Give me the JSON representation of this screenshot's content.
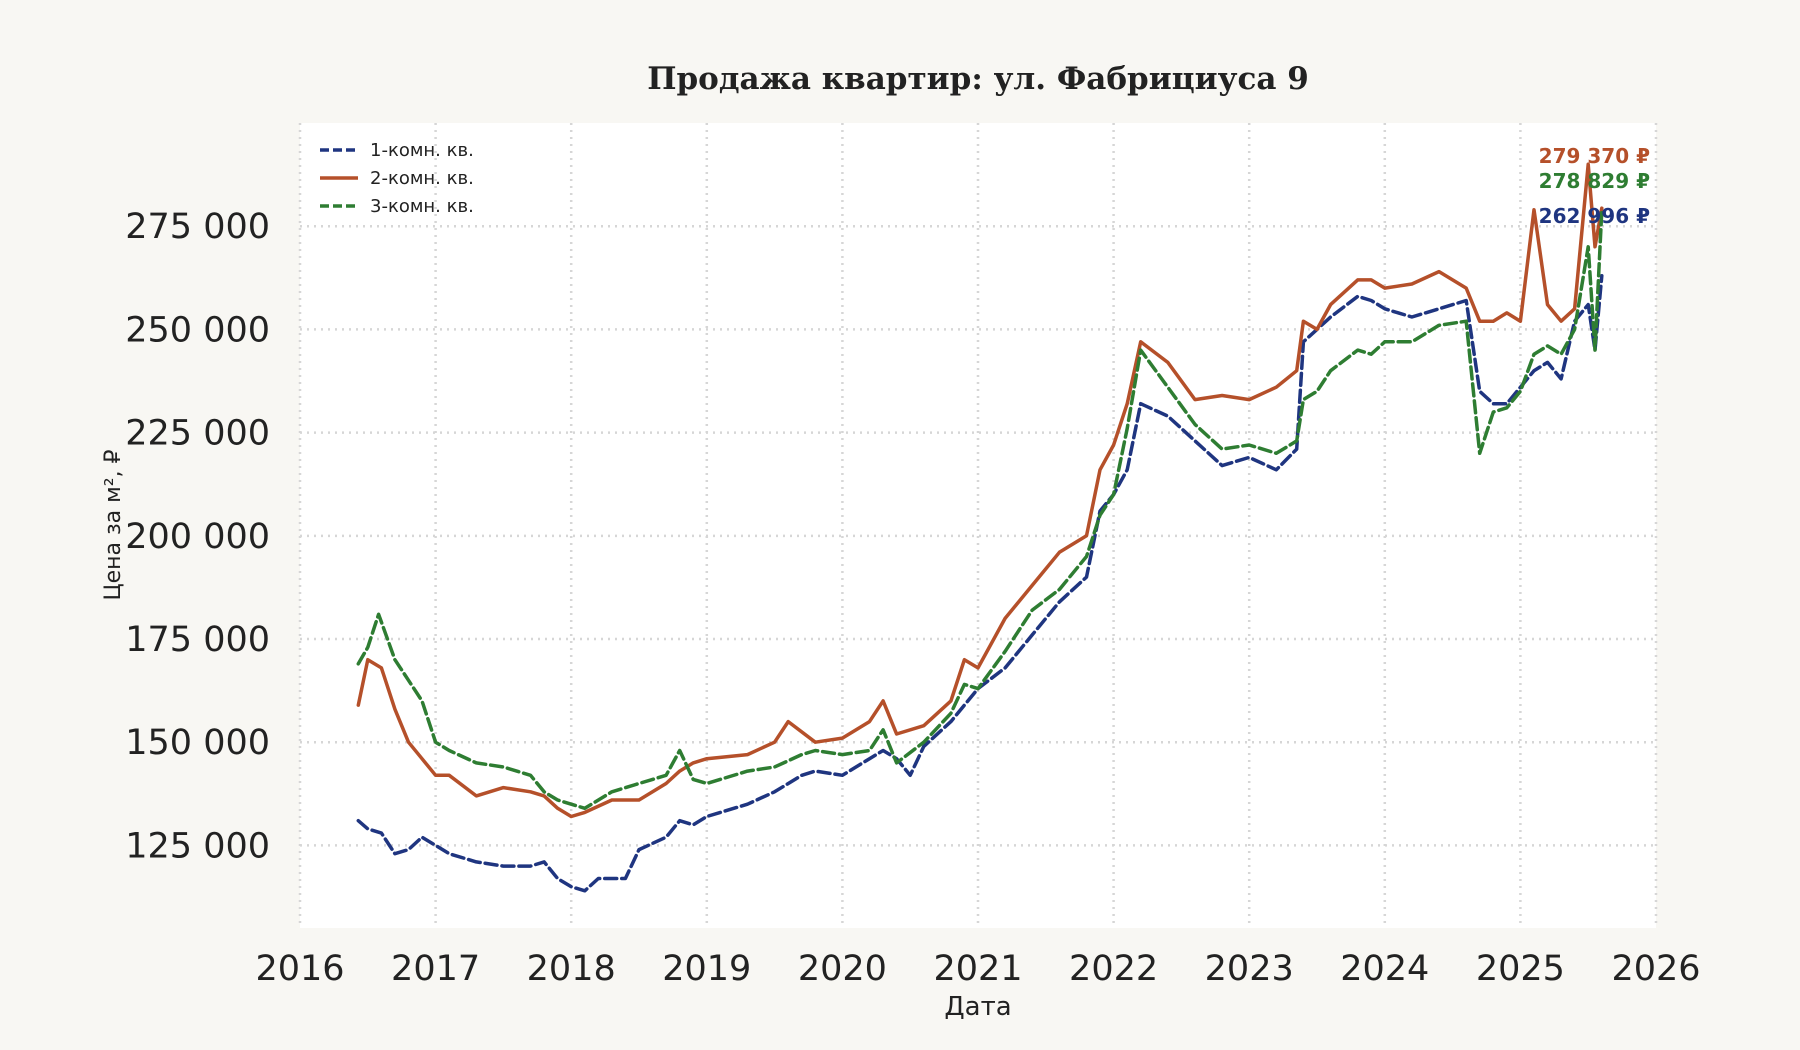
{
  "chart_data": {
    "type": "line",
    "title": "Продажа квартир: ул. Фабрициуса 9",
    "xlabel": "Дата",
    "ylabel": "Цена за м², ₽",
    "xlim": [
      2016.0,
      2026.0
    ],
    "ylim": [
      105000,
      300000
    ],
    "x_ticks": [
      2016,
      2017,
      2018,
      2019,
      2020,
      2021,
      2022,
      2023,
      2024,
      2025,
      2026
    ],
    "x_tick_labels": [
      "2016",
      "2017",
      "2018",
      "2019",
      "2020",
      "2021",
      "2022",
      "2023",
      "2024",
      "2025",
      "2026"
    ],
    "y_ticks": [
      125000,
      150000,
      175000,
      200000,
      225000,
      250000,
      275000
    ],
    "y_tick_labels": [
      "125 000",
      "150 000",
      "175 000",
      "200 000",
      "225 000",
      "250 000",
      "275 000"
    ],
    "grid": true,
    "legend_position": "top-left",
    "series": [
      {
        "name": "1-комн. кв.",
        "color": "#1f3580",
        "dash": "dashed",
        "end_label": "262 996 ₽",
        "x": [
          2016.43,
          2016.5,
          2016.6,
          2016.7,
          2016.8,
          2016.9,
          2017.0,
          2017.1,
          2017.3,
          2017.5,
          2017.7,
          2017.8,
          2017.9,
          2018.0,
          2018.1,
          2018.2,
          2018.4,
          2018.5,
          2018.7,
          2018.8,
          2018.9,
          2019.0,
          2019.3,
          2019.5,
          2019.7,
          2019.8,
          2020.0,
          2020.2,
          2020.3,
          2020.4,
          2020.5,
          2020.6,
          2020.8,
          2020.9,
          2021.0,
          2021.2,
          2021.4,
          2021.6,
          2021.8,
          2021.9,
          2022.0,
          2022.1,
          2022.2,
          2022.4,
          2022.6,
          2022.8,
          2023.0,
          2023.2,
          2023.35,
          2023.4,
          2023.5,
          2023.6,
          2023.8,
          2023.9,
          2024.0,
          2024.2,
          2024.4,
          2024.6,
          2024.7,
          2024.8,
          2024.9,
          2025.0,
          2025.1,
          2025.2,
          2025.3,
          2025.4,
          2025.5,
          2025.55,
          2025.6
        ],
        "y": [
          131000,
          129000,
          128000,
          123000,
          124000,
          127000,
          125000,
          123000,
          121000,
          120000,
          120000,
          121000,
          117000,
          115000,
          114000,
          117000,
          117000,
          124000,
          127000,
          131000,
          130000,
          132000,
          135000,
          138000,
          142000,
          143000,
          142000,
          146000,
          148000,
          146000,
          142000,
          149000,
          155000,
          159000,
          163000,
          168000,
          176000,
          184000,
          190000,
          206000,
          210000,
          216000,
          232000,
          229000,
          223000,
          217000,
          219000,
          216000,
          221000,
          247000,
          250000,
          253000,
          258000,
          257000,
          255000,
          253000,
          255000,
          257000,
          235000,
          232000,
          232000,
          236000,
          240000,
          242000,
          238000,
          252000,
          256000,
          245000,
          262996
        ]
      },
      {
        "name": "2-комн. кв.",
        "color": "#b5502a",
        "dash": "solid",
        "end_label": "279 370 ₽",
        "x": [
          2016.43,
          2016.5,
          2016.6,
          2016.7,
          2016.8,
          2016.9,
          2017.0,
          2017.1,
          2017.3,
          2017.5,
          2017.7,
          2017.8,
          2017.9,
          2018.0,
          2018.1,
          2018.3,
          2018.5,
          2018.7,
          2018.8,
          2018.9,
          2019.0,
          2019.3,
          2019.5,
          2019.6,
          2019.8,
          2020.0,
          2020.2,
          2020.3,
          2020.4,
          2020.6,
          2020.8,
          2020.9,
          2021.0,
          2021.2,
          2021.4,
          2021.6,
          2021.8,
          2021.9,
          2022.0,
          2022.1,
          2022.2,
          2022.4,
          2022.6,
          2022.8,
          2023.0,
          2023.2,
          2023.35,
          2023.4,
          2023.5,
          2023.6,
          2023.8,
          2023.9,
          2024.0,
          2024.2,
          2024.4,
          2024.6,
          2024.7,
          2024.8,
          2024.9,
          2025.0,
          2025.1,
          2025.2,
          2025.3,
          2025.4,
          2025.5,
          2025.55,
          2025.6
        ],
        "y": [
          159000,
          170000,
          168000,
          158000,
          150000,
          146000,
          142000,
          142000,
          137000,
          139000,
          138000,
          137000,
          134000,
          132000,
          133000,
          136000,
          136000,
          140000,
          143000,
          145000,
          146000,
          147000,
          150000,
          155000,
          150000,
          151000,
          155000,
          160000,
          152000,
          154000,
          160000,
          170000,
          168000,
          180000,
          188000,
          196000,
          200000,
          216000,
          222000,
          232000,
          247000,
          242000,
          233000,
          234000,
          233000,
          236000,
          240000,
          252000,
          250000,
          256000,
          262000,
          262000,
          260000,
          261000,
          264000,
          260000,
          252000,
          252000,
          254000,
          252000,
          279000,
          256000,
          252000,
          255000,
          290000,
          270000,
          279370
        ]
      },
      {
        "name": "3-комн. кв.",
        "color": "#2e7d32",
        "dash": "dashed",
        "end_label": "278 829 ₽",
        "x": [
          2016.43,
          2016.5,
          2016.58,
          2016.7,
          2016.8,
          2016.9,
          2017.0,
          2017.1,
          2017.3,
          2017.5,
          2017.7,
          2017.8,
          2017.9,
          2018.0,
          2018.1,
          2018.3,
          2018.5,
          2018.7,
          2018.8,
          2018.9,
          2019.0,
          2019.3,
          2019.5,
          2019.7,
          2019.8,
          2020.0,
          2020.2,
          2020.3,
          2020.4,
          2020.6,
          2020.8,
          2020.9,
          2021.0,
          2021.2,
          2021.4,
          2021.6,
          2021.8,
          2021.9,
          2022.0,
          2022.1,
          2022.2,
          2022.4,
          2022.6,
          2022.8,
          2023.0,
          2023.2,
          2023.35,
          2023.4,
          2023.5,
          2023.6,
          2023.8,
          2023.9,
          2024.0,
          2024.2,
          2024.4,
          2024.6,
          2024.7,
          2024.8,
          2024.9,
          2025.0,
          2025.1,
          2025.2,
          2025.3,
          2025.4,
          2025.5,
          2025.55,
          2025.6
        ],
        "y": [
          169000,
          173000,
          181000,
          170000,
          165000,
          160000,
          150000,
          148000,
          145000,
          144000,
          142000,
          138000,
          136000,
          135000,
          134000,
          138000,
          140000,
          142000,
          148000,
          141000,
          140000,
          143000,
          144000,
          147000,
          148000,
          147000,
          148000,
          153000,
          145000,
          150000,
          157000,
          164000,
          163000,
          172000,
          182000,
          187000,
          195000,
          205000,
          210000,
          226000,
          245000,
          236000,
          227000,
          221000,
          222000,
          220000,
          223000,
          233000,
          235000,
          240000,
          245000,
          244000,
          247000,
          247000,
          251000,
          252000,
          220000,
          230000,
          231000,
          235000,
          244000,
          246000,
          244000,
          250000,
          270000,
          245000,
          278829
        ]
      }
    ]
  }
}
